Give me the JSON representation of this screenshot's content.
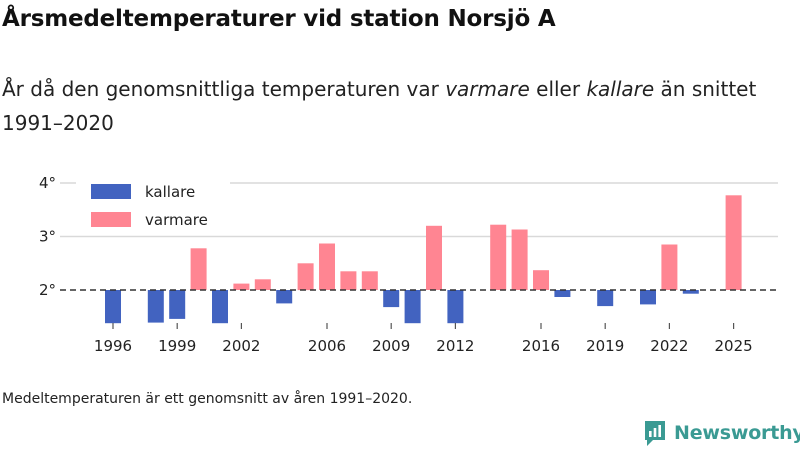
{
  "header": {
    "title": "Årsmedeltemperaturer vid station Norsjö A",
    "subtitle_part1": "År då den genomsnittliga temperaturen var ",
    "subtitle_warm_word": "varmare",
    "subtitle_part2": " eller ",
    "subtitle_cold_word": "kallare",
    "subtitle_part3": " än snittet 1991–2020"
  },
  "footer": {
    "note": "Medeltemperaturen är ett genomsnitt av åren 1991–2020.",
    "brand": "Newsworthy"
  },
  "colors": {
    "colder": "#4263c0",
    "warmer": "#ff8592",
    "baseline": "#333333",
    "grid": "#d9d9d9",
    "brand": "#3a9a93"
  },
  "chart_data": {
    "type": "bar",
    "title": "Årsmedeltemperaturer vid station Norsjö A",
    "baseline": 2.0,
    "ylim": [
      1.3,
      4.2
    ],
    "yticks": [
      2,
      3,
      4
    ],
    "ytick_labels": [
      "2°",
      "3°",
      "4°"
    ],
    "xticks": [
      1996,
      1999,
      2002,
      2006,
      2009,
      2012,
      2016,
      2019,
      2022,
      2025
    ],
    "legend": [
      {
        "key": "colder",
        "label": "kallare"
      },
      {
        "key": "warmer",
        "label": "varmare"
      }
    ],
    "years": [
      1996,
      1998,
      1999,
      2000,
      2001,
      2002,
      2003,
      2004,
      2005,
      2006,
      2007,
      2008,
      2009,
      2010,
      2011,
      2012,
      2014,
      2015,
      2016,
      2017,
      2019,
      2021,
      2022,
      2023,
      2025
    ],
    "values": [
      1.38,
      1.39,
      1.46,
      2.78,
      1.38,
      2.12,
      2.2,
      1.75,
      2.5,
      2.87,
      2.35,
      2.35,
      1.68,
      1.38,
      3.2,
      1.38,
      3.22,
      3.13,
      2.37,
      1.87,
      1.7,
      1.73,
      2.85,
      1.93,
      3.77
    ]
  }
}
